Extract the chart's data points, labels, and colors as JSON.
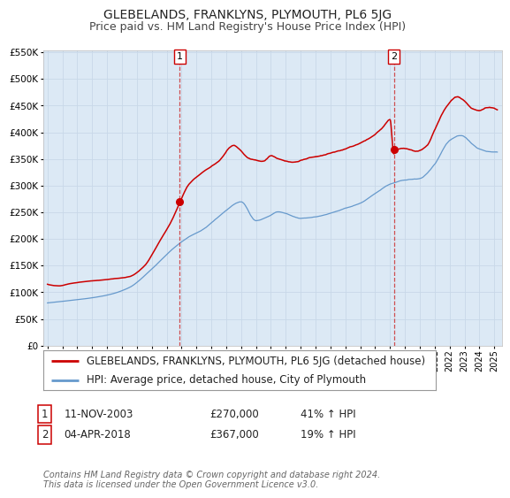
{
  "title": "GLEBELANDS, FRANKLYNS, PLYMOUTH, PL6 5JG",
  "subtitle": "Price paid vs. HM Land Registry's House Price Index (HPI)",
  "ylim_max": 550000,
  "xlim_start": 1994.7,
  "xlim_end": 2025.5,
  "background_color": "#ffffff",
  "plot_bg_color": "#dce9f5",
  "grid_color": "#c8d8e8",
  "red_line_color": "#cc0000",
  "blue_line_color": "#6699cc",
  "marker_color": "#cc0000",
  "dashed_line_color": "#cc3333",
  "legend_label_red": "GLEBELANDS, FRANKLYNS, PLYMOUTH, PL6 5JG (detached house)",
  "legend_label_blue": "HPI: Average price, detached house, City of Plymouth",
  "sale1_date": 2003.87,
  "sale1_price": 270000,
  "sale1_label": "1",
  "sale1_text": "11-NOV-2003",
  "sale1_price_text": "£270,000",
  "sale1_hpi_text": "41% ↑ HPI",
  "sale2_date": 2018.25,
  "sale2_price": 367000,
  "sale2_label": "2",
  "sale2_text": "04-APR-2018",
  "sale2_price_text": "£367,000",
  "sale2_hpi_text": "19% ↑ HPI",
  "footer1": "Contains HM Land Registry data © Crown copyright and database right 2024.",
  "footer2": "This data is licensed under the Open Government Licence v3.0.",
  "title_fontsize": 10,
  "subtitle_fontsize": 9,
  "tick_fontsize": 7.5,
  "legend_fontsize": 8.5,
  "table_fontsize": 8.5,
  "footer_fontsize": 7
}
